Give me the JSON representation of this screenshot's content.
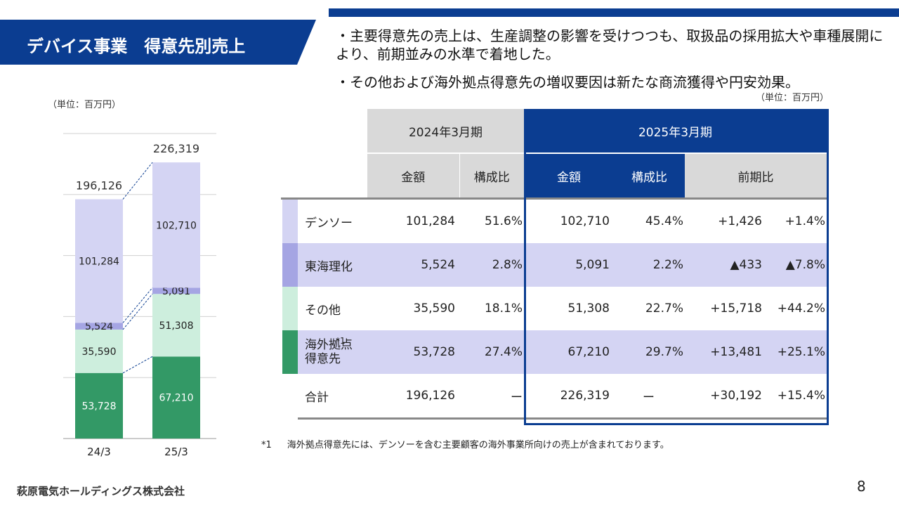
{
  "title": "デバイス事業　得意先別売上",
  "bullets": [
    "・主要得意先の売上は、生産調整の影響を受けつつも、取扱品の採用拡大や車種展開により、前期並みの水準で着地した。",
    "・その他および海外拠点得意先の増収要因は新たな商流獲得や円安効果。"
  ],
  "unit_label": "（単位：百万円）",
  "unit_label_right": "（単位：百万円）",
  "colors": {
    "denso": "#d4d4f3",
    "tokai": "#a5a5e3",
    "other": "#cdeedd",
    "overseas": "#339966",
    "brand": "#0b3d91"
  },
  "chart_data": {
    "type": "bar",
    "stacked": true,
    "categories": [
      "24/3",
      "25/3"
    ],
    "series": [
      {
        "name": "海外拠点得意先",
        "values": [
          53728,
          67210
        ],
        "color": "#339966"
      },
      {
        "name": "その他",
        "values": [
          35590,
          51308
        ],
        "color": "#cdeedd"
      },
      {
        "name": "東海理化",
        "values": [
          5524,
          5091
        ],
        "color": "#a5a5e3"
      },
      {
        "name": "デンソー",
        "values": [
          101284,
          102710
        ],
        "color": "#d4d4f3"
      }
    ],
    "totals": [
      196126,
      226319
    ],
    "total_labels": [
      "196,126",
      "226,319"
    ],
    "value_labels": [
      [
        "53,728",
        "35,590",
        "5,524",
        "101,284"
      ],
      [
        "67,210",
        "51,308",
        "5,091",
        "102,710"
      ]
    ],
    "ylim": [
      0,
      250000
    ],
    "grid": true
  },
  "table": {
    "period_prev": "2024年3月期",
    "period_curr": "2025年3月期",
    "col_amount": "金額",
    "col_ratio": "構成比",
    "col_yoy": "前期比",
    "rows": [
      {
        "label": "デンソー",
        "prev_amount": "101,284",
        "prev_ratio": "51.6%",
        "curr_amount": "102,710",
        "curr_ratio": "45.4%",
        "yoy_amount": "+1,426",
        "yoy_pct": "+1.4%"
      },
      {
        "label": "東海理化",
        "prev_amount": "5,524",
        "prev_ratio": "2.8%",
        "curr_amount": "5,091",
        "curr_ratio": "2.2%",
        "yoy_amount": "▲433",
        "yoy_pct": "▲7.8%"
      },
      {
        "label": "その他",
        "prev_amount": "35,590",
        "prev_ratio": "18.1%",
        "curr_amount": "51,308",
        "curr_ratio": "22.7%",
        "yoy_amount": "+15,718",
        "yoy_pct": "+44.2%"
      },
      {
        "label": "海外拠点\n得意先",
        "prev_amount": "53,728",
        "prev_ratio": "27.4%",
        "curr_amount": "67,210",
        "curr_ratio": "29.7%",
        "yoy_amount": "+13,481",
        "yoy_pct": "+25.1%"
      },
      {
        "label": "合計",
        "prev_amount": "196,126",
        "prev_ratio": "ー",
        "curr_amount": "226,319",
        "curr_ratio": "ー",
        "yoy_amount": "+30,192",
        "yoy_pct": "+15.4%"
      }
    ]
  },
  "footnote_mark": "*1",
  "footnote": "海外拠点得意先には、デンソーを含む主要顧客の海外事業所向けの売上が含まれております。",
  "company": "萩原電気ホールディングス株式会社",
  "page_number": "8"
}
